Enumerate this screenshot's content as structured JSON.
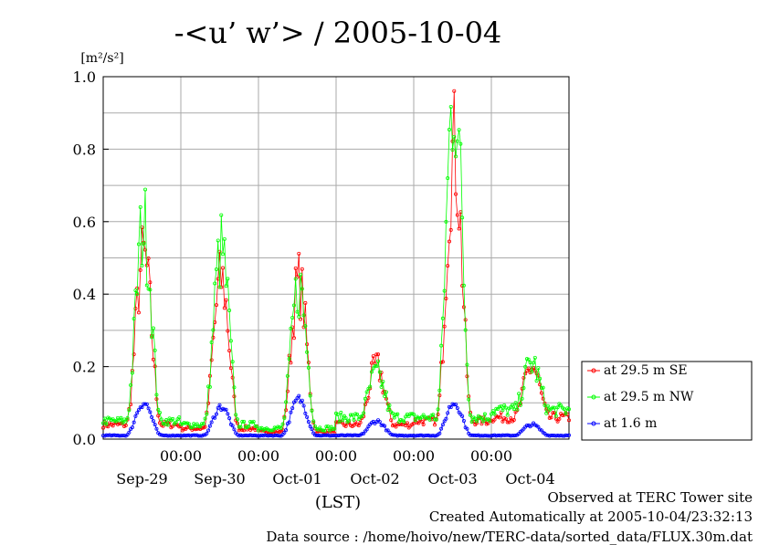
{
  "footer": {
    "line1": "Observed at TERC Tower site",
    "line2": "Created Automatically at 2005-10-04/23:32:13",
    "line3": "Data source : /home/hoivo/new/TERC-data/sorted_data/FLUX.30m.dat"
  },
  "chart_data": {
    "type": "line",
    "title": "-<u’ w’> / 2005-10-04",
    "ylabel_unit": "[m²/s²]",
    "xlabel": "(LST)",
    "ylim": [
      0,
      1.0
    ],
    "xlim_days": [
      0,
      6
    ],
    "y_ticks": [
      "0.0",
      "0.2",
      "0.4",
      "0.6",
      "0.8",
      "1.0"
    ],
    "x_time_labels": [
      "00:00",
      "00:00",
      "00:00",
      "00:00",
      "00:00"
    ],
    "x_date_labels": [
      "Sep-29",
      "Sep-30",
      "Oct-01",
      "Oct-02",
      "Oct-03",
      "Oct-04"
    ],
    "grid": true,
    "legend_position": "right",
    "series": [
      {
        "name": "at 29.5 m SE",
        "color": "#ff0000",
        "nightly_level": [
          0.04,
          0.03,
          0.02,
          0.04,
          0.05,
          0.06
        ],
        "daily_peak": [
          0.5,
          0.44,
          0.43,
          0.2,
          0.8,
          0.2
        ]
      },
      {
        "name": "at 29.5 m NW",
        "color": "#00ff00",
        "nightly_level": [
          0.05,
          0.04,
          0.03,
          0.06,
          0.06,
          0.08
        ],
        "daily_peak": [
          0.59,
          0.52,
          0.42,
          0.18,
          0.96,
          0.21
        ]
      },
      {
        "name": "at 1.6 m",
        "color": "#0000ff",
        "nightly_level": [
          0.01,
          0.01,
          0.01,
          0.01,
          0.01,
          0.01
        ],
        "daily_peak": [
          0.1,
          0.09,
          0.11,
          0.05,
          0.1,
          0.04
        ]
      }
    ]
  }
}
